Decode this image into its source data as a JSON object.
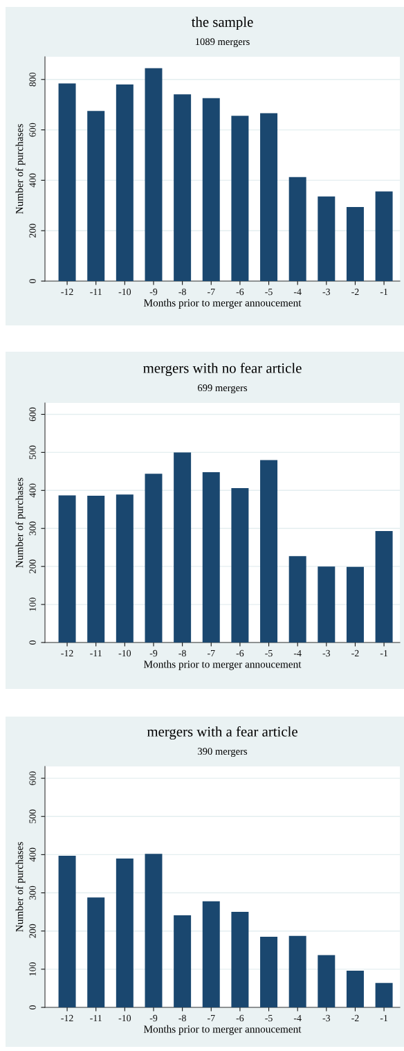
{
  "chart_data": [
    {
      "type": "bar",
      "title": "the sample",
      "subtitle": "1089 mergers",
      "xlabel": "Months prior to merger annoucement",
      "ylabel": "Number of purchases",
      "categories": [
        "-12",
        "-11",
        "-10",
        "-9",
        "-8",
        "-7",
        "-6",
        "-5",
        "-4",
        "-3",
        "-2",
        "-1"
      ],
      "values": [
        784,
        675,
        780,
        845,
        741,
        726,
        656,
        666,
        413,
        336,
        294,
        356
      ],
      "color": "#1a476f",
      "ylim": [
        0,
        890
      ],
      "yticks": [
        0,
        200,
        400,
        600,
        800
      ],
      "grid": "y"
    },
    {
      "type": "bar",
      "title": "mergers with no fear article",
      "subtitle": "699 mergers",
      "xlabel": "Months prior to merger annoucement",
      "ylabel": "Number of purchases",
      "categories": [
        "-12",
        "-11",
        "-10",
        "-9",
        "-8",
        "-7",
        "-6",
        "-5",
        "-4",
        "-3",
        "-2",
        "-1"
      ],
      "values": [
        387,
        386,
        389,
        444,
        500,
        448,
        406,
        480,
        227,
        200,
        199,
        293
      ],
      "color": "#1a476f",
      "ylim": [
        0,
        630
      ],
      "yticks": [
        0,
        100,
        200,
        300,
        400,
        500,
        600
      ],
      "grid": "y"
    },
    {
      "type": "bar",
      "title": "mergers with a fear article",
      "subtitle": "390 mergers",
      "xlabel": "Months prior to merger annoucement",
      "ylabel": "Number of purchases",
      "categories": [
        "-12",
        "-11",
        "-10",
        "-9",
        "-8",
        "-7",
        "-6",
        "-5",
        "-4",
        "-3",
        "-2",
        "-1"
      ],
      "values": [
        397,
        288,
        390,
        402,
        241,
        278,
        250,
        185,
        187,
        137,
        96,
        64
      ],
      "color": "#1a476f",
      "ylim": [
        0,
        631
      ],
      "yticks": [
        0,
        100,
        200,
        300,
        400,
        500,
        600
      ],
      "grid": "y"
    }
  ]
}
